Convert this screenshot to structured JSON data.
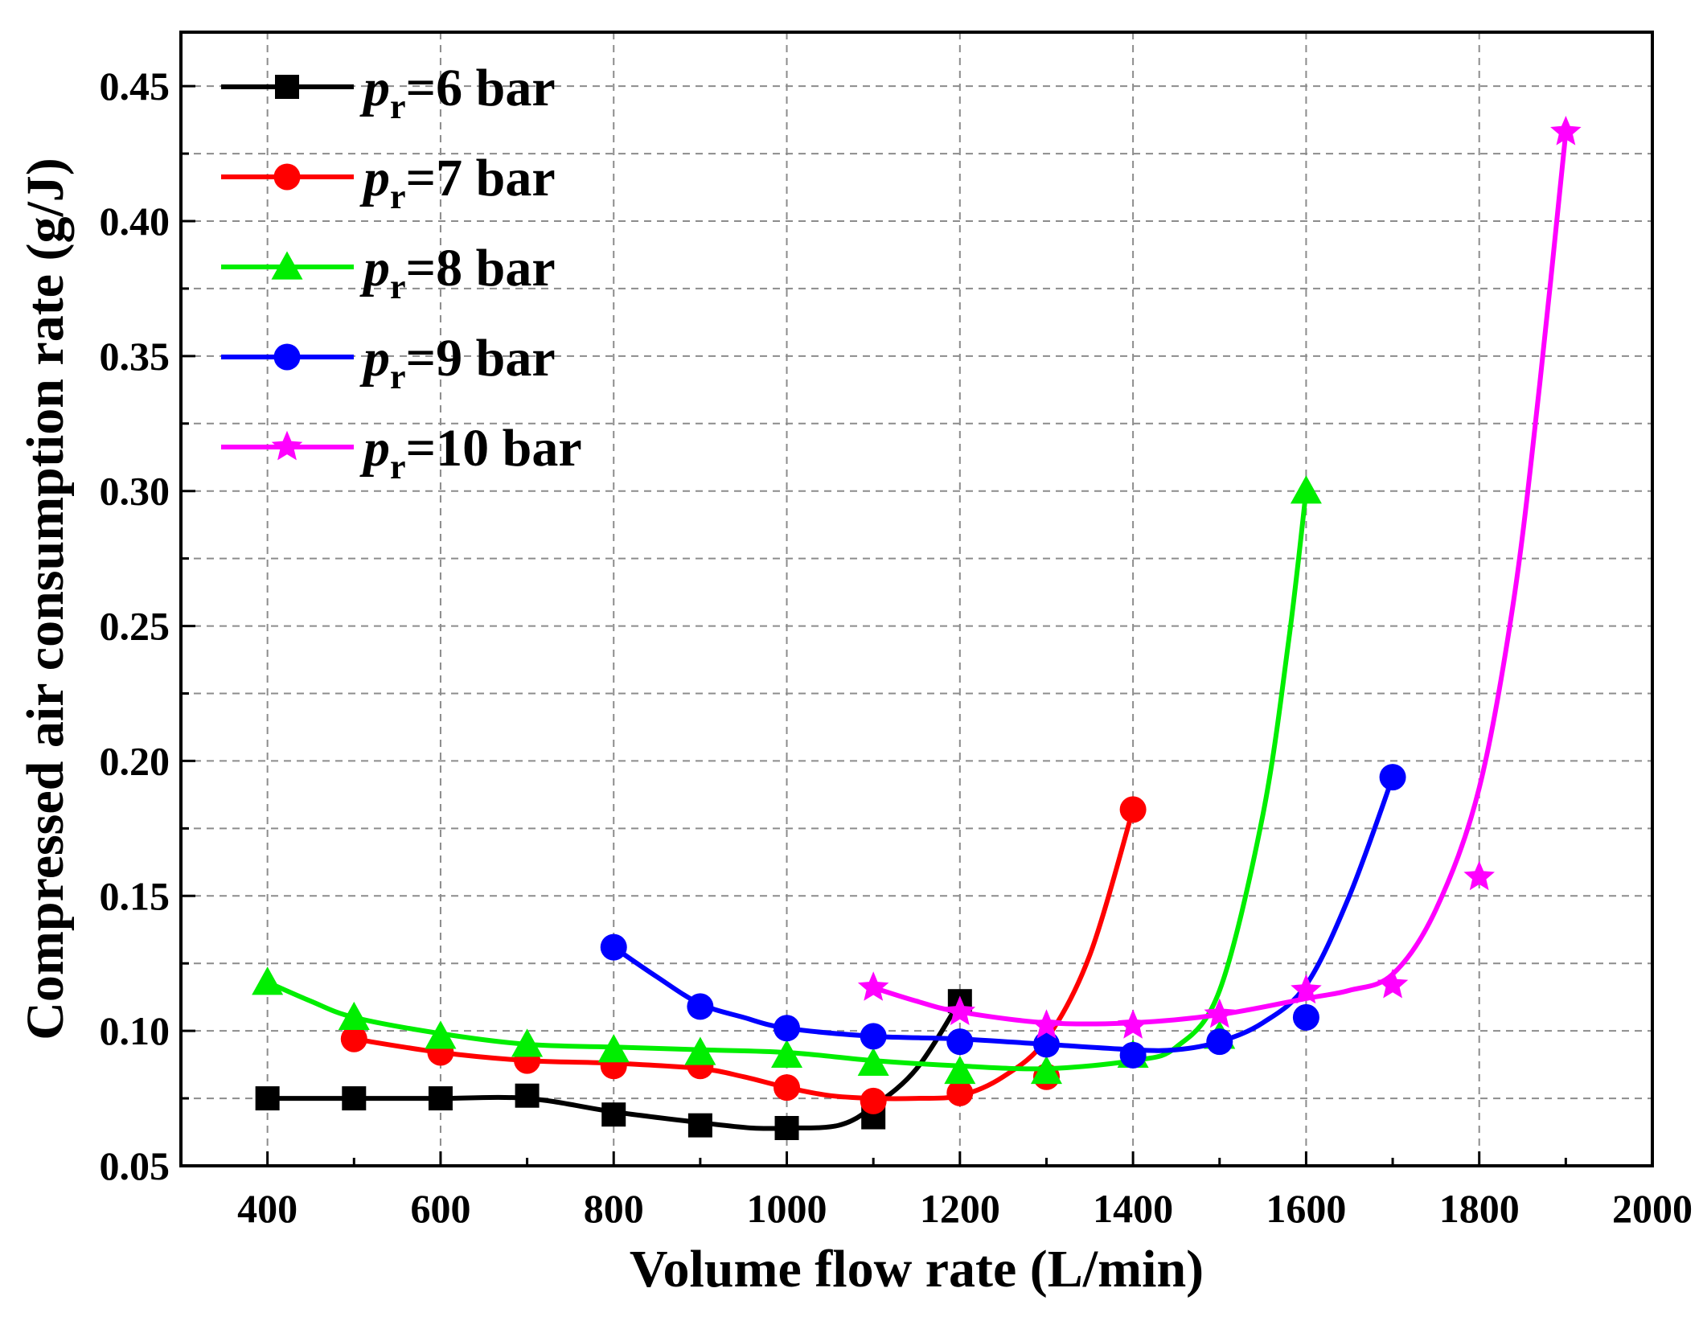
{
  "chart_data": {
    "type": "line",
    "title": "",
    "xlabel": "Volume flow rate (L/min)",
    "ylabel": "Compressed air consumption rate (g/J)",
    "xlim": [
      300,
      2000
    ],
    "ylim": [
      0.05,
      0.47
    ],
    "xticks": [
      400,
      600,
      800,
      1000,
      1200,
      1400,
      1600,
      1800,
      2000
    ],
    "xtick_labels": [
      "400",
      "600",
      "800",
      "1000",
      "1200",
      "1400",
      "1600",
      "1800",
      "2000"
    ],
    "yticks": [
      0.05,
      0.1,
      0.15,
      0.2,
      0.25,
      0.3,
      0.35,
      0.4,
      0.45
    ],
    "ytick_labels": [
      "0.05",
      "0.10",
      "0.15",
      "0.20",
      "0.25",
      "0.30",
      "0.35",
      "0.40",
      "0.45"
    ],
    "grid": true,
    "legend_position": "top-left",
    "series": [
      {
        "name": "pr=6 bar",
        "legend_symbol": "p",
        "legend_sub": "r",
        "legend_rest": "=6 bar",
        "color": "#000000",
        "marker": "square",
        "x": [
          400,
          500,
          600,
          700,
          800,
          900,
          1000,
          1100,
          1200
        ],
        "y": [
          0.075,
          0.075,
          0.075,
          0.076,
          0.069,
          0.065,
          0.064,
          0.068,
          0.111
        ],
        "curve": [
          [
            400,
            0.075
          ],
          [
            500,
            0.075
          ],
          [
            600,
            0.075
          ],
          [
            700,
            0.075
          ],
          [
            800,
            0.07
          ],
          [
            900,
            0.066
          ],
          [
            960,
            0.064
          ],
          [
            1000,
            0.064
          ],
          [
            1060,
            0.065
          ],
          [
            1100,
            0.072
          ],
          [
            1150,
            0.086
          ],
          [
            1200,
            0.111
          ]
        ]
      },
      {
        "name": "pr=7 bar",
        "legend_symbol": "p",
        "legend_sub": "r",
        "legend_rest": "=7 bar",
        "color": "#ff0000",
        "marker": "circle",
        "x": [
          500,
          600,
          700,
          800,
          900,
          1000,
          1100,
          1200,
          1300,
          1400
        ],
        "y": [
          0.097,
          0.092,
          0.089,
          0.087,
          0.087,
          0.079,
          0.074,
          0.077,
          0.083,
          0.182
        ],
        "curve": [
          [
            500,
            0.097
          ],
          [
            600,
            0.092
          ],
          [
            700,
            0.089
          ],
          [
            800,
            0.088
          ],
          [
            900,
            0.086
          ],
          [
            950,
            0.083
          ],
          [
            1000,
            0.079
          ],
          [
            1050,
            0.076
          ],
          [
            1100,
            0.075
          ],
          [
            1150,
            0.075
          ],
          [
            1200,
            0.076
          ],
          [
            1250,
            0.083
          ],
          [
            1300,
            0.097
          ],
          [
            1350,
            0.128
          ],
          [
            1400,
            0.182
          ]
        ]
      },
      {
        "name": "pr=8 bar",
        "legend_symbol": "p",
        "legend_sub": "r",
        "legend_rest": "=8 bar",
        "color": "#00ee00",
        "marker": "triangle",
        "x": [
          400,
          500,
          600,
          700,
          800,
          900,
          1000,
          1100,
          1200,
          1300,
          1400,
          1500,
          1600
        ],
        "y": [
          0.118,
          0.105,
          0.098,
          0.095,
          0.093,
          0.092,
          0.091,
          0.088,
          0.085,
          0.085,
          0.091,
          0.098,
          0.3
        ],
        "curve": [
          [
            400,
            0.118
          ],
          [
            450,
            0.111
          ],
          [
            500,
            0.105
          ],
          [
            600,
            0.099
          ],
          [
            700,
            0.095
          ],
          [
            800,
            0.094
          ],
          [
            900,
            0.093
          ],
          [
            1000,
            0.092
          ],
          [
            1100,
            0.089
          ],
          [
            1200,
            0.087
          ],
          [
            1300,
            0.086
          ],
          [
            1400,
            0.089
          ],
          [
            1450,
            0.094
          ],
          [
            1500,
            0.115
          ],
          [
            1550,
            0.18
          ],
          [
            1580,
            0.245
          ],
          [
            1600,
            0.3
          ]
        ]
      },
      {
        "name": "pr=9 bar",
        "legend_symbol": "p",
        "legend_sub": "r",
        "legend_rest": "=9 bar",
        "color": "#0000ff",
        "marker": "circle",
        "x": [
          800,
          900,
          1000,
          1100,
          1200,
          1300,
          1400,
          1500,
          1600,
          1700
        ],
        "y": [
          0.131,
          0.109,
          0.101,
          0.098,
          0.096,
          0.095,
          0.091,
          0.096,
          0.105,
          0.194
        ],
        "curve": [
          [
            800,
            0.131
          ],
          [
            850,
            0.12
          ],
          [
            900,
            0.11
          ],
          [
            950,
            0.105
          ],
          [
            1000,
            0.101
          ],
          [
            1100,
            0.098
          ],
          [
            1200,
            0.097
          ],
          [
            1300,
            0.095
          ],
          [
            1400,
            0.093
          ],
          [
            1450,
            0.093
          ],
          [
            1500,
            0.096
          ],
          [
            1550,
            0.103
          ],
          [
            1600,
            0.117
          ],
          [
            1650,
            0.15
          ],
          [
            1700,
            0.194
          ]
        ]
      },
      {
        "name": "pr=10 bar",
        "legend_symbol": "p",
        "legend_sub": "r",
        "legend_rest": "=10 bar",
        "color": "#ff00ff",
        "marker": "star",
        "x": [
          1100,
          1200,
          1300,
          1400,
          1500,
          1600,
          1700,
          1800,
          1900
        ],
        "y": [
          0.116,
          0.107,
          0.102,
          0.102,
          0.106,
          0.115,
          0.117,
          0.157,
          0.433
        ],
        "curve": [
          [
            1100,
            0.116
          ],
          [
            1150,
            0.111
          ],
          [
            1200,
            0.107
          ],
          [
            1300,
            0.103
          ],
          [
            1400,
            0.103
          ],
          [
            1500,
            0.106
          ],
          [
            1600,
            0.112
          ],
          [
            1650,
            0.115
          ],
          [
            1700,
            0.121
          ],
          [
            1750,
            0.145
          ],
          [
            1800,
            0.19
          ],
          [
            1840,
            0.26
          ],
          [
            1870,
            0.34
          ],
          [
            1900,
            0.433
          ]
        ]
      }
    ]
  }
}
